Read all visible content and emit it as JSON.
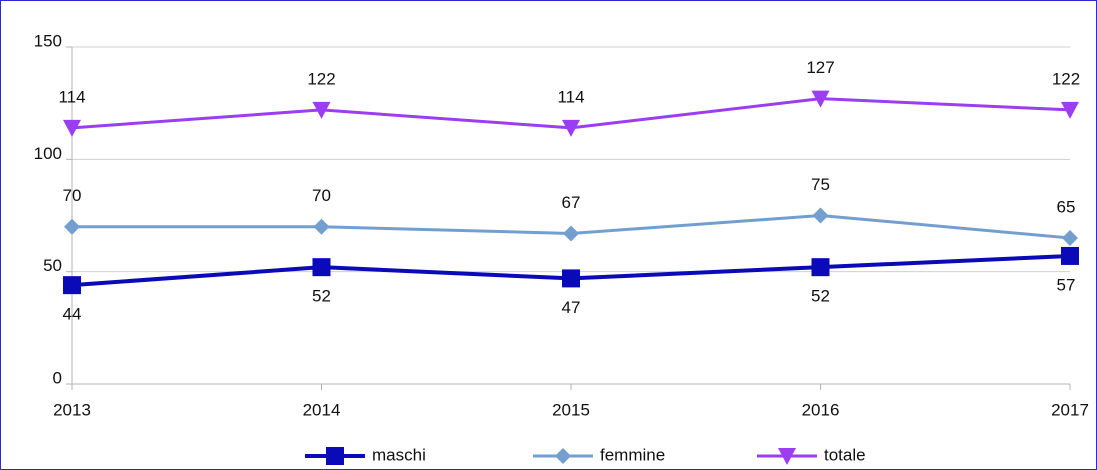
{
  "chart_data": {
    "type": "line",
    "x": [
      2013,
      2014,
      2015,
      2016,
      2017
    ],
    "xlim": [
      2013,
      2017
    ],
    "xticks": [
      2013,
      2014,
      2015,
      2016,
      2017
    ],
    "ylim": [
      0,
      150
    ],
    "yticks": [
      0,
      50,
      100,
      150
    ],
    "grid": true,
    "legend": "bottom",
    "series": [
      {
        "name": "maschi",
        "color": "#0a0ab8",
        "marker": "square",
        "values": [
          44,
          52,
          47,
          52,
          57
        ]
      },
      {
        "name": "femmine",
        "color": "#729fcf",
        "marker": "diamond",
        "values": [
          70,
          70,
          67,
          75,
          65
        ]
      },
      {
        "name": "totale",
        "color": "#9b3df0",
        "marker": "triangle-down",
        "values": [
          114,
          122,
          114,
          127,
          122
        ]
      }
    ]
  }
}
